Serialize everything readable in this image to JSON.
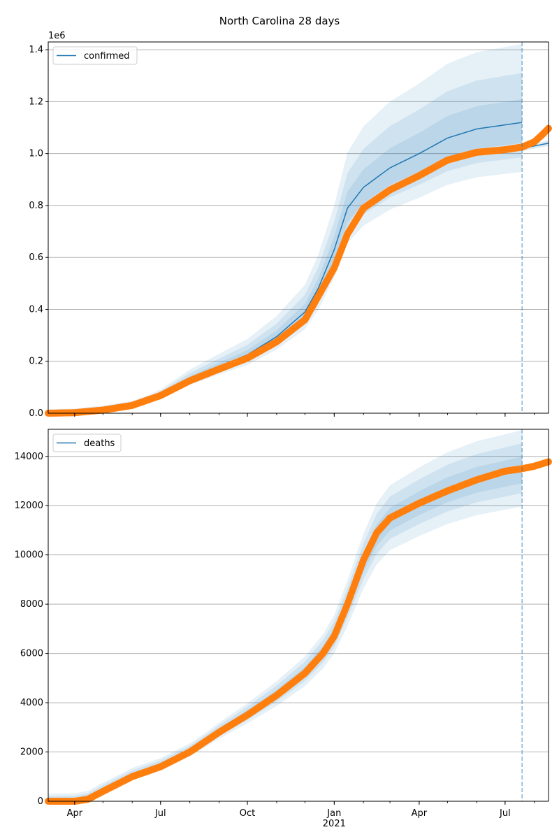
{
  "chart_data": [
    {
      "type": "line",
      "title": "North Carolina 28 days",
      "offset_label": "1e6",
      "legend": {
        "label": "confirmed",
        "placement": "top-left"
      },
      "ylim": [
        0,
        1430000
      ],
      "yticks": [
        0,
        200000,
        400000,
        600000,
        800000,
        1000000,
        1200000,
        1400000
      ],
      "ytick_labels": [
        "0.0",
        "0.2",
        "0.4",
        "0.6",
        "0.8",
        "1.0",
        "1.2",
        "1.4"
      ],
      "xlim": [
        "2020-03-04",
        "2021-08-16"
      ],
      "forecast_start": "2021-07-19",
      "grid": "y",
      "observed": [
        [
          "2020-03-04",
          0
        ],
        [
          "2020-04-01",
          2000
        ],
        [
          "2020-05-01",
          12000
        ],
        [
          "2020-06-01",
          30000
        ],
        [
          "2020-07-01",
          68000
        ],
        [
          "2020-08-01",
          125000
        ],
        [
          "2020-09-01",
          170000
        ],
        [
          "2020-10-01",
          212000
        ],
        [
          "2020-11-01",
          275000
        ],
        [
          "2020-12-01",
          360000
        ],
        [
          "2020-12-15",
          450000
        ],
        [
          "2021-01-01",
          560000
        ],
        [
          "2021-01-15",
          690000
        ],
        [
          "2021-02-01",
          790000
        ],
        [
          "2021-03-01",
          860000
        ],
        [
          "2021-04-01",
          915000
        ],
        [
          "2021-05-01",
          975000
        ],
        [
          "2021-06-01",
          1005000
        ],
        [
          "2021-07-01",
          1015000
        ],
        [
          "2021-07-19",
          1025000
        ],
        [
          "2021-08-01",
          1045000
        ],
        [
          "2021-08-10",
          1075000
        ],
        [
          "2021-08-16",
          1097000
        ]
      ],
      "median_fit": [
        [
          "2020-03-04",
          0
        ],
        [
          "2020-04-01",
          3000
        ],
        [
          "2020-05-01",
          14000
        ],
        [
          "2020-06-01",
          33000
        ],
        [
          "2020-07-01",
          72000
        ],
        [
          "2020-08-01",
          132000
        ],
        [
          "2020-09-01",
          180000
        ],
        [
          "2020-10-01",
          225000
        ],
        [
          "2020-11-01",
          295000
        ],
        [
          "2020-12-01",
          390000
        ],
        [
          "2020-12-15",
          480000
        ],
        [
          "2021-01-01",
          630000
        ],
        [
          "2021-01-15",
          790000
        ],
        [
          "2021-02-01",
          870000
        ],
        [
          "2021-03-01",
          945000
        ],
        [
          "2021-04-01",
          1000000
        ],
        [
          "2021-05-01",
          1060000
        ],
        [
          "2021-06-01",
          1095000
        ],
        [
          "2021-07-19",
          1120000
        ]
      ],
      "forecast": [
        [
          "2021-07-19",
          1020000
        ],
        [
          "2021-08-16",
          1040000
        ]
      ],
      "band_ratios": [
        [
          0.93,
          1.08
        ],
        [
          0.88,
          1.17
        ],
        [
          0.83,
          1.27
        ]
      ],
      "band_min_width": [
        5000,
        10000,
        15000
      ],
      "xticks": [
        [
          "2020-04-01",
          "Apr"
        ],
        [
          "2020-07-01",
          "Jul"
        ],
        [
          "2020-10-01",
          "Oct"
        ],
        [
          "2021-01-01",
          "Jan"
        ],
        [
          "2021-04-01",
          "Apr"
        ],
        [
          "2021-07-01",
          "Jul"
        ]
      ],
      "show_xtick_labels": false
    },
    {
      "type": "line",
      "legend": {
        "label": "deaths",
        "placement": "top-left"
      },
      "ylim": [
        0,
        15100
      ],
      "yticks": [
        0,
        2000,
        4000,
        6000,
        8000,
        10000,
        12000,
        14000
      ],
      "ytick_labels": [
        "0",
        "2000",
        "4000",
        "6000",
        "8000",
        "10000",
        "12000",
        "14000"
      ],
      "xlim": [
        "2020-03-04",
        "2021-08-16"
      ],
      "forecast_start": "2021-07-19",
      "grid": "y",
      "observed": [
        [
          "2020-03-04",
          0
        ],
        [
          "2020-04-01",
          0
        ],
        [
          "2020-04-15",
          80
        ],
        [
          "2020-05-01",
          400
        ],
        [
          "2020-06-01",
          1000
        ],
        [
          "2020-07-01",
          1400
        ],
        [
          "2020-08-01",
          2000
        ],
        [
          "2020-09-01",
          2800
        ],
        [
          "2020-10-01",
          3500
        ],
        [
          "2020-11-01",
          4300
        ],
        [
          "2020-12-01",
          5200
        ],
        [
          "2020-12-20",
          6000
        ],
        [
          "2021-01-01",
          6700
        ],
        [
          "2021-01-15",
          8000
        ],
        [
          "2021-02-01",
          9800
        ],
        [
          "2021-02-15",
          10900
        ],
        [
          "2021-03-01",
          11500
        ],
        [
          "2021-04-01",
          12100
        ],
        [
          "2021-05-01",
          12600
        ],
        [
          "2021-06-01",
          13050
        ],
        [
          "2021-07-01",
          13400
        ],
        [
          "2021-07-19",
          13500
        ],
        [
          "2021-08-01",
          13600
        ],
        [
          "2021-08-16",
          13780
        ]
      ],
      "median_fit": [
        [
          "2020-03-04",
          0
        ],
        [
          "2020-04-01",
          20
        ],
        [
          "2020-04-15",
          120
        ],
        [
          "2020-05-01",
          450
        ],
        [
          "2020-06-01",
          1050
        ],
        [
          "2020-07-01",
          1450
        ],
        [
          "2020-08-01",
          2050
        ],
        [
          "2020-09-01",
          2850
        ],
        [
          "2020-10-01",
          3550
        ],
        [
          "2020-11-01",
          4350
        ],
        [
          "2020-12-01",
          5250
        ],
        [
          "2020-12-20",
          6050
        ],
        [
          "2021-01-01",
          6750
        ],
        [
          "2021-01-15",
          8000
        ],
        [
          "2021-02-01",
          9700
        ],
        [
          "2021-02-15",
          10800
        ],
        [
          "2021-03-01",
          11450
        ],
        [
          "2021-04-01",
          12100
        ],
        [
          "2021-05-01",
          12650
        ],
        [
          "2021-06-01",
          13050
        ],
        [
          "2021-07-19",
          13450
        ]
      ],
      "forecast": [
        [
          "2021-07-19",
          13500
        ],
        [
          "2021-08-16",
          13780
        ]
      ],
      "band_ratios": [
        [
          0.96,
          1.04
        ],
        [
          0.93,
          1.08
        ],
        [
          0.89,
          1.12
        ]
      ],
      "band_min_width": [
        100,
        200,
        300
      ],
      "xticks": [
        [
          "2020-04-01",
          "Apr"
        ],
        [
          "2020-07-01",
          "Jul"
        ],
        [
          "2020-10-01",
          "Oct"
        ],
        [
          "2021-01-01",
          "Jan"
        ],
        [
          "2021-04-01",
          "Apr"
        ],
        [
          "2021-07-01",
          "Jul"
        ]
      ],
      "year_label": "2021",
      "show_xtick_labels": true
    }
  ]
}
